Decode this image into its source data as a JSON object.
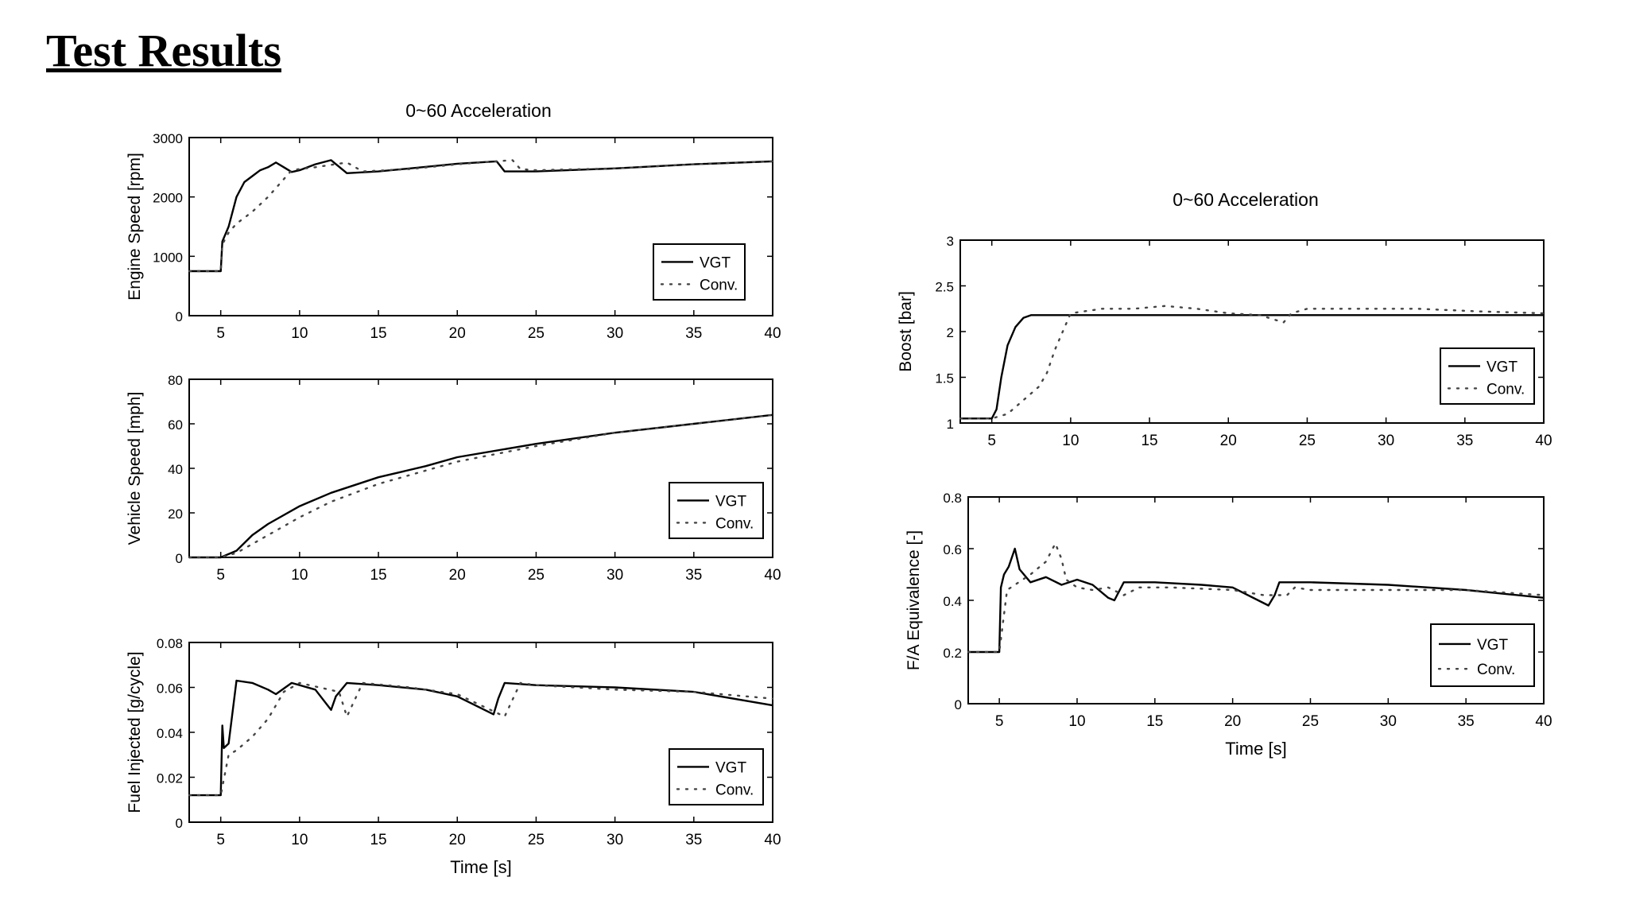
{
  "slide": {
    "title": "Test Results"
  },
  "figures": {
    "left_title": "0~60 Acceleration",
    "right_title": "0~60 Acceleration"
  },
  "chart_data": [
    {
      "type": "line",
      "title": "0~60 Acceleration",
      "xlabel": "",
      "ylabel": "Engine Speed [rpm]",
      "xlim": [
        3,
        40
      ],
      "ylim": [
        0,
        3000
      ],
      "xticks": [
        5,
        10,
        15,
        20,
        25,
        30,
        35,
        40
      ],
      "yticks": [
        0,
        1000,
        2000,
        3000
      ],
      "legend": "bottom-right",
      "series": [
        {
          "name": "VGT",
          "style": "solid",
          "x": [
            3,
            5,
            5.1,
            5.5,
            6,
            6.5,
            7,
            7.5,
            8,
            8.5,
            9,
            9.5,
            10,
            11,
            12,
            13,
            15,
            17,
            20,
            22.5,
            23,
            25,
            30,
            35,
            40
          ],
          "y": [
            750,
            750,
            1250,
            1500,
            2000,
            2250,
            2350,
            2450,
            2500,
            2580,
            2500,
            2420,
            2450,
            2550,
            2620,
            2400,
            2430,
            2480,
            2560,
            2600,
            2430,
            2430,
            2480,
            2550,
            2600
          ]
        },
        {
          "name": "Conv.",
          "style": "dotted",
          "x": [
            3,
            5,
            5.1,
            5.5,
            6,
            7,
            8,
            9,
            9.5,
            10,
            11,
            13,
            14,
            17,
            20,
            23.5,
            24,
            25,
            30,
            35,
            40
          ],
          "y": [
            750,
            750,
            1200,
            1400,
            1550,
            1750,
            2000,
            2300,
            2450,
            2470,
            2500,
            2580,
            2430,
            2470,
            2550,
            2620,
            2470,
            2450,
            2480,
            2550,
            2600
          ]
        }
      ]
    },
    {
      "type": "line",
      "title": "",
      "xlabel": "",
      "ylabel": "Vehicle Speed [mph]",
      "xlim": [
        3,
        40
      ],
      "ylim": [
        0,
        80
      ],
      "xticks": [
        5,
        10,
        15,
        20,
        25,
        30,
        35,
        40
      ],
      "yticks": [
        0,
        20,
        40,
        60,
        80
      ],
      "legend": "bottom-right",
      "series": [
        {
          "name": "VGT",
          "style": "solid",
          "x": [
            3,
            5,
            6,
            7,
            8,
            10,
            12,
            15,
            18,
            20,
            25,
            30,
            35,
            40
          ],
          "y": [
            0,
            0,
            3,
            10,
            15,
            23,
            29,
            36,
            41,
            45,
            51,
            56,
            60,
            64
          ]
        },
        {
          "name": "Conv.",
          "style": "dotted",
          "x": [
            3,
            5,
            6,
            7,
            8,
            10,
            12,
            15,
            18,
            20,
            25,
            30,
            35,
            40
          ],
          "y": [
            0,
            0,
            2,
            6,
            10,
            18,
            25,
            33,
            39,
            43,
            50,
            56,
            60,
            64
          ]
        }
      ]
    },
    {
      "type": "line",
      "title": "",
      "xlabel": "Time [s]",
      "ylabel": "Fuel Injected [g/cycle]",
      "xlim": [
        3,
        40
      ],
      "ylim": [
        0,
        0.08
      ],
      "xticks": [
        5,
        10,
        15,
        20,
        25,
        30,
        35,
        40
      ],
      "yticks": [
        0,
        0.02,
        0.04,
        0.06,
        0.08
      ],
      "legend": "bottom-right",
      "series": [
        {
          "name": "VGT",
          "style": "solid",
          "x": [
            3,
            5,
            5.1,
            5.2,
            5.5,
            6,
            7,
            8,
            8.5,
            9.5,
            11,
            12,
            12.3,
            13,
            15,
            18,
            20,
            22.3,
            22.6,
            23,
            25,
            30,
            35,
            40
          ],
          "y": [
            0.012,
            0.012,
            0.043,
            0.033,
            0.035,
            0.063,
            0.062,
            0.059,
            0.057,
            0.062,
            0.059,
            0.05,
            0.056,
            0.062,
            0.061,
            0.059,
            0.056,
            0.048,
            0.055,
            0.062,
            0.061,
            0.06,
            0.058,
            0.052
          ]
        },
        {
          "name": "Conv.",
          "style": "dotted",
          "x": [
            3,
            5,
            5.5,
            6,
            7,
            8,
            9,
            10,
            12.5,
            13,
            14,
            17,
            20,
            23,
            24,
            25,
            30,
            35,
            40
          ],
          "y": [
            0.012,
            0.012,
            0.03,
            0.032,
            0.038,
            0.046,
            0.058,
            0.062,
            0.058,
            0.047,
            0.062,
            0.06,
            0.057,
            0.047,
            0.062,
            0.061,
            0.059,
            0.058,
            0.055
          ]
        }
      ]
    },
    {
      "type": "line",
      "title": "0~60 Acceleration",
      "xlabel": "",
      "ylabel": "Boost [bar]",
      "xlim": [
        3,
        40
      ],
      "ylim": [
        1,
        3
      ],
      "xticks": [
        5,
        10,
        15,
        20,
        25,
        30,
        35,
        40
      ],
      "yticks": [
        1,
        1.5,
        2,
        2.5,
        3
      ],
      "yticklabels": [
        "1",
        "1.5",
        "2",
        "2.5",
        "3"
      ],
      "legend": "bottom-right",
      "series": [
        {
          "name": "VGT",
          "style": "solid",
          "x": [
            3,
            5,
            5.3,
            5.6,
            6,
            6.5,
            7,
            7.5,
            8,
            10,
            15,
            20,
            23,
            25,
            30,
            35,
            40
          ],
          "y": [
            1.05,
            1.05,
            1.15,
            1.5,
            1.85,
            2.05,
            2.15,
            2.18,
            2.18,
            2.18,
            2.18,
            2.18,
            2.18,
            2.18,
            2.18,
            2.18,
            2.18
          ]
        },
        {
          "name": "Conv.",
          "style": "dotted",
          "x": [
            3,
            5,
            6,
            7,
            8,
            8.5,
            9,
            9.5,
            10,
            12,
            14,
            16,
            18,
            20,
            22,
            23.5,
            24,
            25,
            28,
            32,
            36,
            40
          ],
          "y": [
            1.05,
            1.05,
            1.1,
            1.25,
            1.4,
            1.55,
            1.8,
            2.0,
            2.2,
            2.25,
            2.25,
            2.28,
            2.25,
            2.2,
            2.18,
            2.1,
            2.2,
            2.25,
            2.25,
            2.25,
            2.22,
            2.2
          ]
        }
      ]
    },
    {
      "type": "line",
      "title": "",
      "xlabel": "Time [s]",
      "ylabel": "F/A Equivalence [-]",
      "xlim": [
        3,
        40
      ],
      "ylim": [
        0,
        0.8
      ],
      "xticks": [
        5,
        10,
        15,
        20,
        25,
        30,
        35,
        40
      ],
      "yticks": [
        0,
        0.2,
        0.4,
        0.6,
        0.8
      ],
      "legend": "bottom-right",
      "series": [
        {
          "name": "VGT",
          "style": "solid",
          "x": [
            3,
            5,
            5.1,
            5.3,
            5.6,
            6,
            6.3,
            7,
            8,
            9,
            10,
            11,
            12,
            12.4,
            13,
            15,
            18,
            20,
            22.3,
            22.7,
            23,
            25,
            30,
            35,
            40
          ],
          "y": [
            0.2,
            0.2,
            0.45,
            0.5,
            0.53,
            0.6,
            0.52,
            0.47,
            0.49,
            0.46,
            0.48,
            0.46,
            0.41,
            0.4,
            0.47,
            0.47,
            0.46,
            0.45,
            0.38,
            0.42,
            0.47,
            0.47,
            0.46,
            0.44,
            0.41
          ]
        },
        {
          "name": "Conv.",
          "style": "dotted",
          "x": [
            3,
            5,
            5.5,
            6,
            7,
            8,
            8.6,
            9,
            9.3,
            10,
            11,
            12,
            13,
            14,
            16,
            20,
            22,
            23.5,
            24,
            25,
            30,
            35,
            40
          ],
          "y": [
            0.2,
            0.2,
            0.44,
            0.46,
            0.5,
            0.55,
            0.62,
            0.56,
            0.48,
            0.45,
            0.44,
            0.45,
            0.42,
            0.45,
            0.45,
            0.44,
            0.42,
            0.42,
            0.45,
            0.44,
            0.44,
            0.44,
            0.42
          ]
        }
      ]
    }
  ]
}
